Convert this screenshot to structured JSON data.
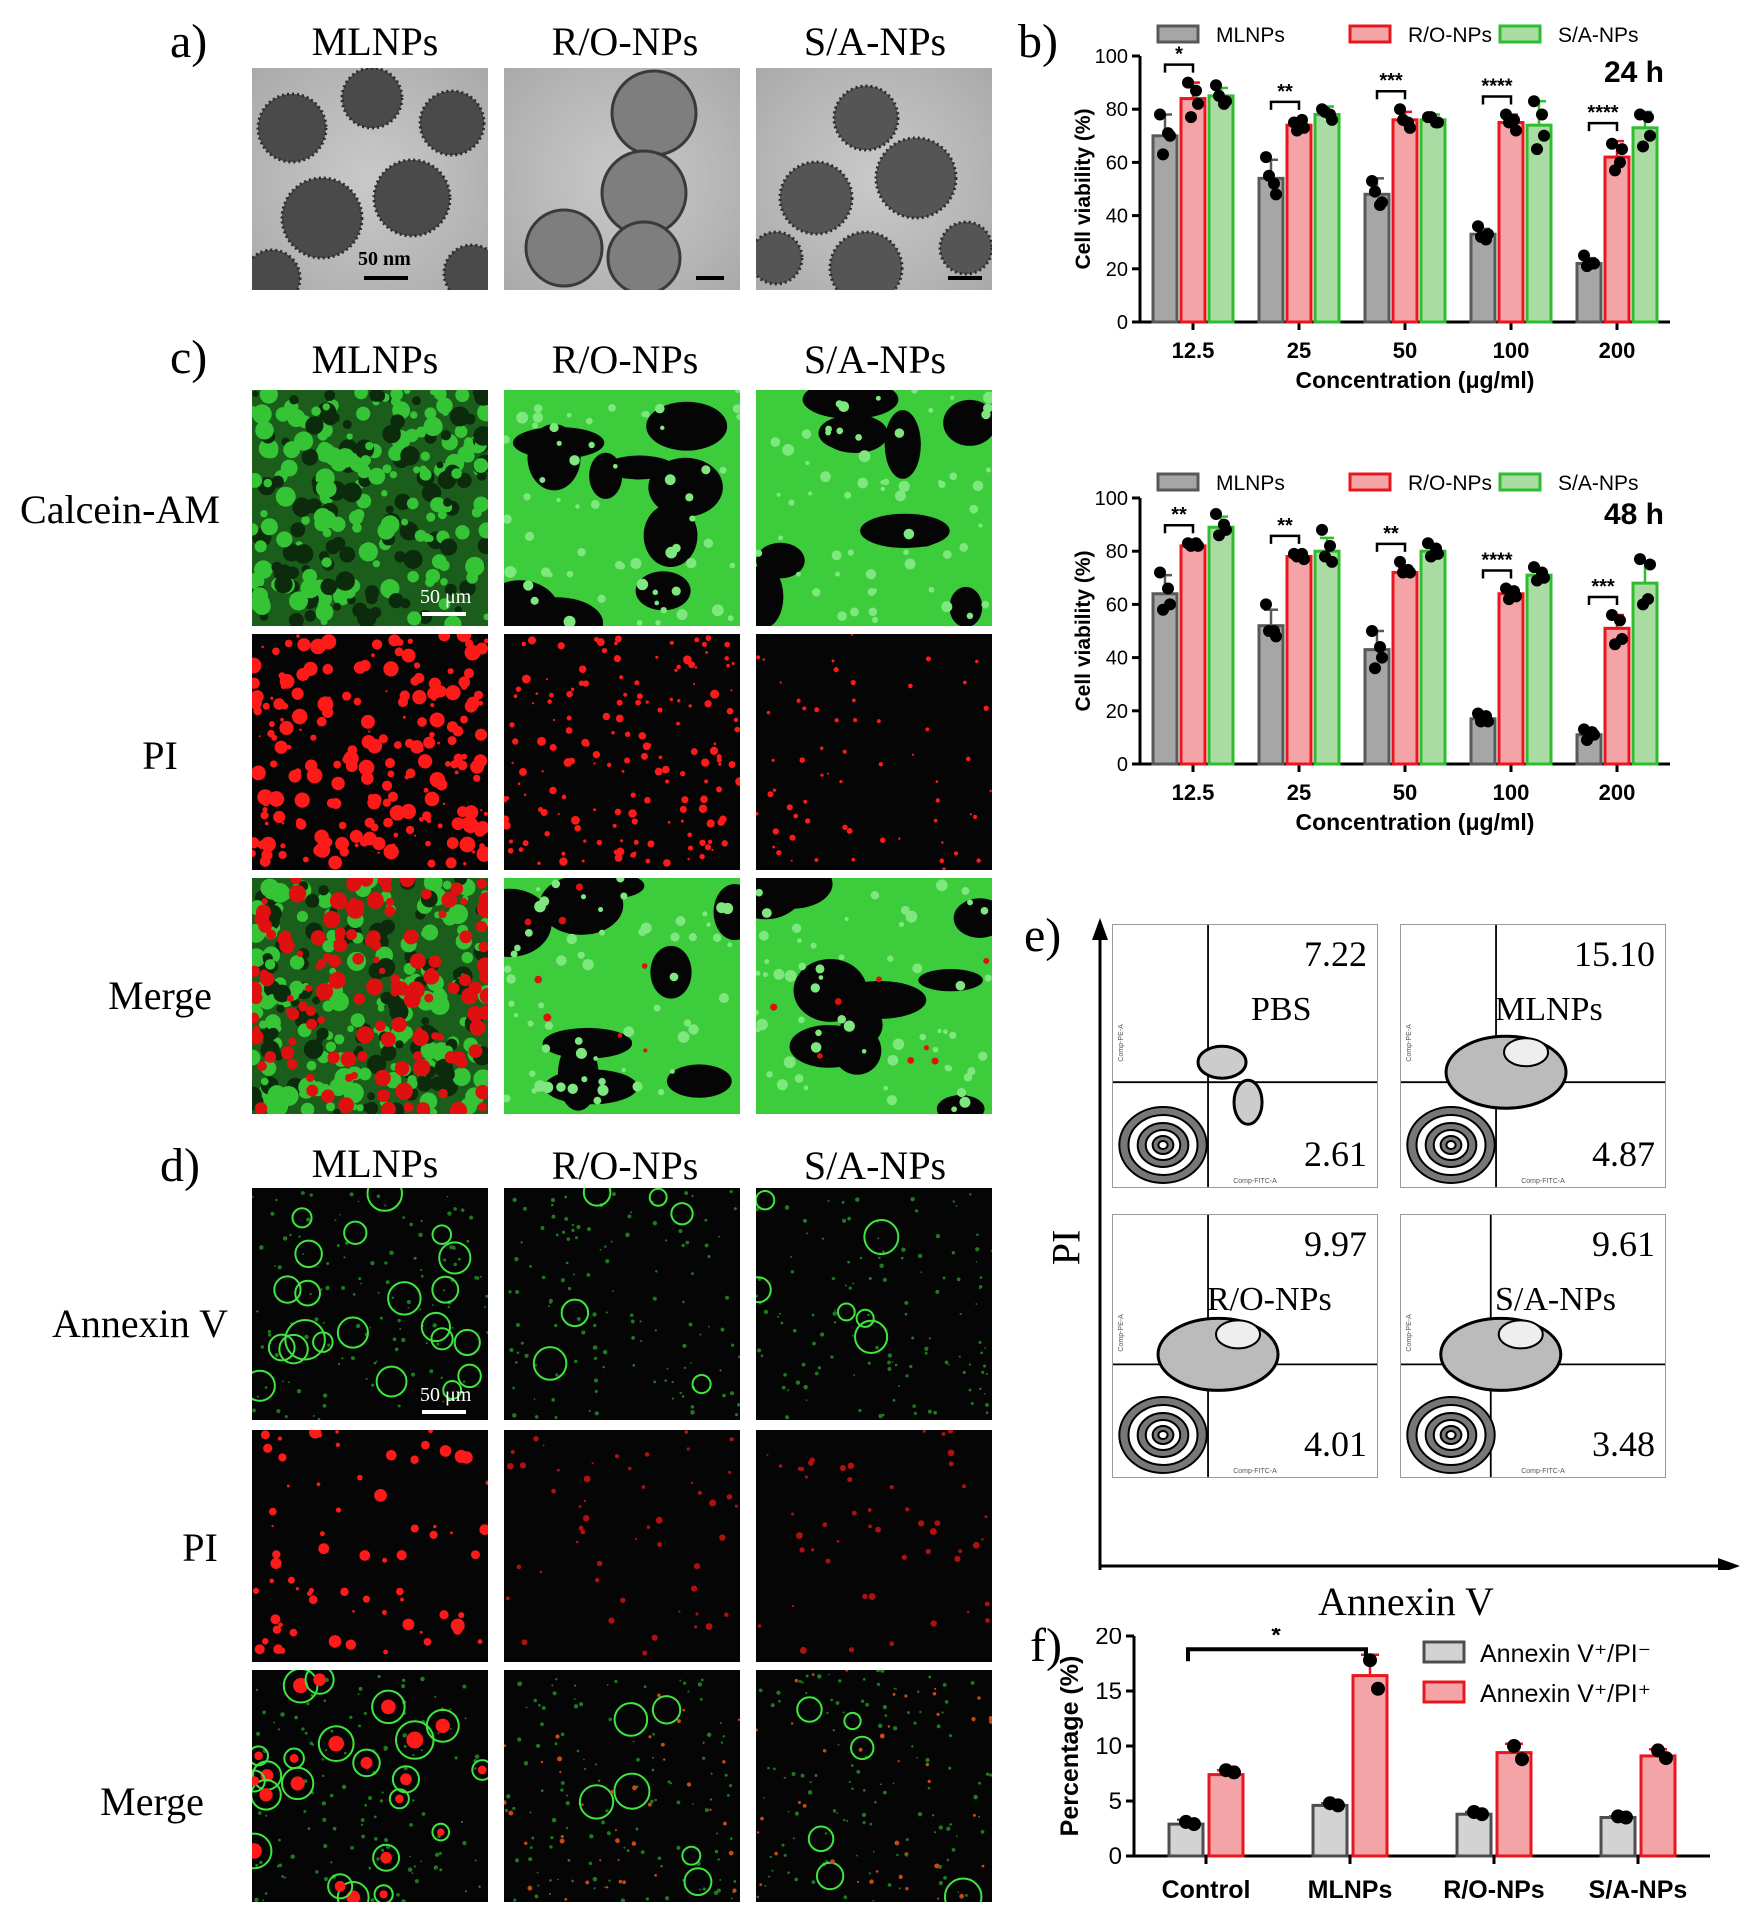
{
  "panels": {
    "a": {
      "letter": "a)",
      "columns": [
        "MLNPs",
        "R/O-NPs",
        "S/A-NPs"
      ],
      "scale_label": "50 nm"
    },
    "c": {
      "letter": "c)",
      "columns": [
        "MLNPs",
        "R/O-NPs",
        "S/A-NPs"
      ],
      "rows": [
        "Calcein-AM",
        "PI",
        "Merge"
      ],
      "scale_label": "50 μm"
    },
    "d": {
      "letter": "d)",
      "columns": [
        "MLNPs",
        "R/O-NPs",
        "S/A-NPs"
      ],
      "rows": [
        "Annexin V",
        "PI",
        "Merge"
      ],
      "scale_label": "50 μm"
    },
    "b": {
      "letter": "b)"
    },
    "e": {
      "letter": "e)",
      "xlabel": "Annexin V",
      "ylabel": "PI",
      "plots": [
        {
          "name": "PBS",
          "upper_right": "7.22",
          "lower_right": "2.61"
        },
        {
          "name": "MLNPs",
          "upper_right": "15.10",
          "lower_right": "4.87"
        },
        {
          "name": "R/O-NPs",
          "upper_right": "9.97",
          "lower_right": "4.01"
        },
        {
          "name": "S/A-NPs",
          "upper_right": "9.61",
          "lower_right": "3.48"
        }
      ],
      "axis_small_labels": {
        "x": "Comp-FITC-A",
        "y": "Comp-PE-A"
      }
    },
    "f": {
      "letter": "f)"
    }
  },
  "colors": {
    "gray_fill": "#a6a6a6",
    "gray_stroke": "#595959",
    "red_fill": "#f4a3a6",
    "red_stroke": "#e8171f",
    "green_fill": "#a9dba3",
    "green_stroke": "#2fbd2f"
  },
  "chart_data": [
    {
      "id": "b-24h",
      "type": "bar",
      "annotation": "24 h",
      "categories": [
        "12.5",
        "25",
        "50",
        "100",
        "200"
      ],
      "series": [
        {
          "name": "MLNPs",
          "values": [
            70,
            54,
            48,
            33,
            22
          ],
          "errors": [
            8,
            7,
            6,
            2,
            2
          ],
          "points": [
            [
              78,
              70,
              63,
              71
            ],
            [
              62,
              48,
              55,
              52
            ],
            [
              53,
              45,
              49,
              44
            ],
            [
              36,
              33,
              32,
              31
            ],
            [
              25,
              22,
              21,
              22
            ]
          ]
        },
        {
          "name": "R/O-NPs",
          "values": [
            84,
            74,
            76,
            75,
            62
          ],
          "errors": [
            6,
            2,
            3,
            3,
            6
          ],
          "points": [
            [
              90,
              82,
              77,
              87
            ],
            [
              75,
              73,
              72,
              76
            ],
            [
              80,
              73,
              76,
              75
            ],
            [
              78,
              72,
              75,
              76
            ],
            [
              67,
              65,
              57,
              60
            ]
          ]
        },
        {
          "name": "S/A-NPs",
          "values": [
            85,
            78,
            76,
            74,
            73
          ],
          "errors": [
            3,
            3,
            2,
            9,
            6
          ],
          "points": [
            [
              89,
              83,
              85,
              82
            ],
            [
              80,
              76,
              79,
              78
            ],
            [
              77,
              75,
              77,
              75
            ],
            [
              83,
              70,
              65,
              78
            ],
            [
              78,
              70,
              66,
              77
            ]
          ]
        }
      ],
      "sig": [
        {
          "cat": 0,
          "label": "*"
        },
        {
          "cat": 1,
          "label": "**"
        },
        {
          "cat": 2,
          "label": "***"
        },
        {
          "cat": 3,
          "label": "****"
        },
        {
          "cat": 4,
          "label": "****"
        }
      ],
      "xlabel": "Concentration (μg/ml)",
      "ylabel": "Cell viability (%)",
      "ylim": [
        0,
        100
      ],
      "yticks": [
        0,
        20,
        40,
        60,
        80,
        100
      ],
      "legend": "top"
    },
    {
      "id": "b-48h",
      "type": "bar",
      "annotation": "48 h",
      "categories": [
        "12.5",
        "25",
        "50",
        "100",
        "200"
      ],
      "series": [
        {
          "name": "MLNPs",
          "values": [
            64,
            52,
            43,
            17,
            11
          ],
          "errors": [
            7,
            6,
            7,
            2,
            2
          ],
          "points": [
            [
              72,
              60,
              58,
              66
            ],
            [
              60,
              48,
              50,
              50
            ],
            [
              50,
              40,
              36,
              44
            ],
            [
              19,
              16,
              16,
              18
            ],
            [
              13,
              11,
              9,
              12
            ]
          ]
        },
        {
          "name": "R/O-NPs",
          "values": [
            82,
            78,
            72,
            64,
            51
          ],
          "errors": [
            1,
            1,
            2,
            2,
            5
          ],
          "points": [
            [
              83,
              82,
              82,
              83
            ],
            [
              79,
              77,
              78,
              79
            ],
            [
              76,
              72,
              72,
              73
            ],
            [
              66,
              63,
              62,
              65
            ],
            [
              56,
              47,
              45,
              54
            ]
          ]
        },
        {
          "name": "S/A-NPs",
          "values": [
            89,
            80,
            80,
            71,
            68
          ],
          "errors": [
            4,
            5,
            2,
            2,
            8
          ],
          "points": [
            [
              94,
              88,
              86,
              90
            ],
            [
              88,
              76,
              78,
              82
            ],
            [
              83,
              79,
              78,
              81
            ],
            [
              74,
              70,
              69,
              72
            ],
            [
              77,
              75,
              60,
              62
            ]
          ]
        }
      ],
      "sig": [
        {
          "cat": 0,
          "label": "**"
        },
        {
          "cat": 1,
          "label": "**"
        },
        {
          "cat": 2,
          "label": "**"
        },
        {
          "cat": 3,
          "label": "****"
        },
        {
          "cat": 4,
          "label": "***"
        }
      ],
      "xlabel": "Concentration (μg/ml)",
      "ylabel": "Cell viability (%)",
      "ylim": [
        0,
        100
      ],
      "yticks": [
        0,
        20,
        40,
        60,
        80,
        100
      ],
      "legend": "top"
    },
    {
      "id": "f",
      "type": "bar",
      "categories": [
        "Control",
        "MLNPs",
        "R/O-NPs",
        "S/A-NPs"
      ],
      "series": [
        {
          "name": "Annexin V⁺/PI⁻",
          "values": [
            2.9,
            4.6,
            3.8,
            3.5
          ],
          "errors": [
            0.4,
            0.2,
            0.2,
            0.1
          ],
          "points": [
            [
              3.1,
              2.9
            ],
            [
              4.8,
              4.6
            ],
            [
              4.0,
              3.8
            ],
            [
              3.6,
              3.5
            ]
          ]
        },
        {
          "name": "Annexin V⁺/PI⁺",
          "values": [
            7.4,
            16.4,
            9.4,
            9.1
          ],
          "errors": [
            0.4,
            1.9,
            0.8,
            0.6
          ],
          "points": [
            [
              7.8,
              7.6
            ],
            [
              17.8,
              15.2
            ],
            [
              10.0,
              8.8
            ],
            [
              9.6,
              8.9
            ]
          ]
        }
      ],
      "sig": [
        {
          "from": 0,
          "to": 1,
          "label": "*"
        }
      ],
      "ylabel": "Percentage (%)",
      "ylim": [
        0,
        20
      ],
      "yticks": [
        0,
        5,
        10,
        15,
        20
      ],
      "legend": "top-right"
    }
  ]
}
